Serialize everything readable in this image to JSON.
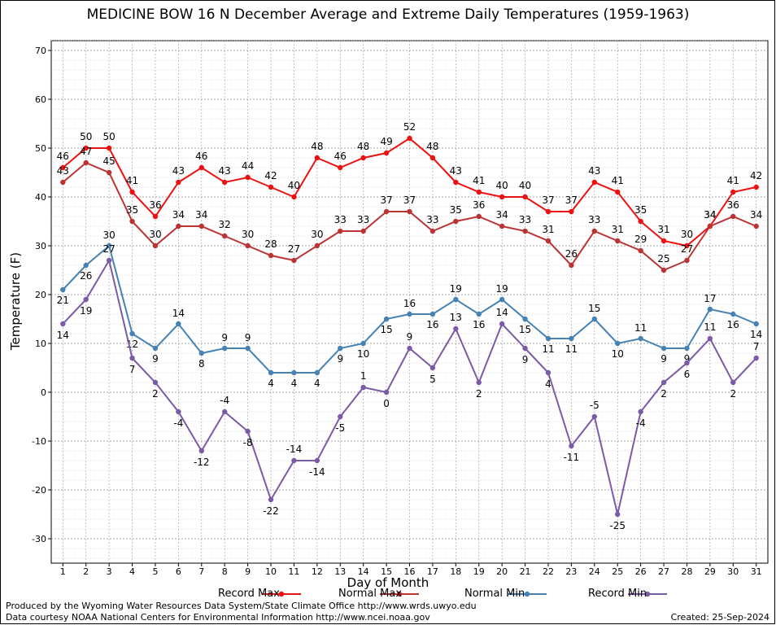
{
  "chart_data": {
    "type": "line",
    "title": "MEDICINE BOW 16 N December Average and Extreme Daily Temperatures (1959-1963)",
    "xlabel": "Day of Month",
    "ylabel": "Temperature (F)",
    "x": [
      1,
      2,
      3,
      4,
      5,
      6,
      7,
      8,
      9,
      10,
      11,
      12,
      13,
      14,
      15,
      16,
      17,
      18,
      19,
      20,
      21,
      22,
      23,
      24,
      25,
      26,
      27,
      28,
      29,
      30,
      31
    ],
    "ylim": [
      -35,
      72
    ],
    "yticks": [
      -30,
      -20,
      -10,
      0,
      10,
      20,
      30,
      40,
      50,
      60,
      70
    ],
    "grid": true,
    "legend_position": "bottom",
    "series": [
      {
        "name": "Record Max",
        "color": "#ee1111",
        "values": [
          46,
          50,
          50,
          41,
          36,
          43,
          46,
          43,
          44,
          42,
          40,
          48,
          46,
          48,
          49,
          52,
          48,
          43,
          41,
          40,
          40,
          37,
          37,
          43,
          41,
          35,
          31,
          30,
          34,
          41,
          42
        ]
      },
      {
        "name": "Normal Max",
        "color": "#bb3333",
        "values": [
          43,
          47,
          45,
          35,
          30,
          34,
          34,
          32,
          30,
          28,
          27,
          30,
          33,
          33,
          37,
          37,
          33,
          35,
          36,
          34,
          33,
          31,
          26,
          33,
          31,
          29,
          25,
          27,
          34,
          36,
          34
        ]
      },
      {
        "name": "Normal Min",
        "color": "#4682b4",
        "values": [
          21,
          26,
          30,
          12,
          9,
          14,
          8,
          9,
          9,
          4,
          4,
          4,
          9,
          10,
          15,
          16,
          16,
          19,
          16,
          19,
          15,
          11,
          11,
          15,
          10,
          11,
          9,
          9,
          17,
          16,
          14
        ]
      },
      {
        "name": "Record Min",
        "color": "#7b5aa6",
        "values": [
          14,
          19,
          27,
          7,
          2,
          -4,
          -12,
          -4,
          -8,
          -22,
          -14,
          -14,
          -5,
          1,
          0,
          9,
          5,
          13,
          2,
          14,
          9,
          4,
          -11,
          -5,
          -25,
          -4,
          2,
          6,
          11,
          2,
          7
        ]
      }
    ]
  },
  "footer": {
    "credit_line1": "Produced by the Wyoming Water Resources Data System/State Climate Office http://www.wrds.uwyo.edu",
    "credit_line2": "Data courtesy NOAA National Centers for Environmental Information http://www.ncei.noaa.gov",
    "created": "Created:  25-Sep-2024"
  }
}
